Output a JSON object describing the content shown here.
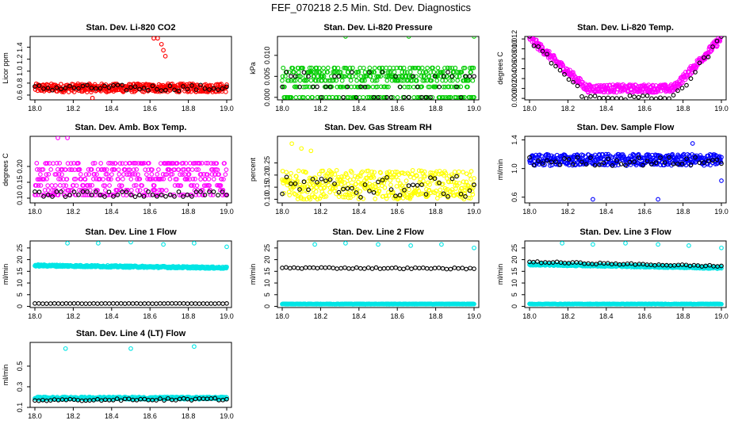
{
  "title": "FEF_070218  2.5 Min. Std. Dev. Diagnostics",
  "chart_data": [
    {
      "type": "scatter",
      "title": "Stan. Dev. Li-820 CO2",
      "ylabel": "Licor ppm",
      "xlim": [
        18.0,
        19.0
      ],
      "ylim": [
        0.52,
        1.58
      ],
      "xticks": [
        18.0,
        18.2,
        18.4,
        18.6,
        18.8,
        19.0
      ],
      "xtick_labels": [
        "18.0",
        "18.2",
        "18.4",
        "18.6",
        "18.8",
        "19.0"
      ],
      "yticks": [
        0.6,
        0.8,
        1.0,
        1.2,
        1.4
      ],
      "ytick_labels": [
        "0.6",
        "0.8",
        "1.0",
        "1.2",
        "1.4"
      ],
      "series": [
        {
          "name": "red",
          "color": "#ff0000",
          "n": 420,
          "mode": "band",
          "center": 0.72,
          "spread": 0.07,
          "extra": [
            [
              18.62,
              1.55
            ],
            [
              18.64,
              1.55
            ],
            [
              18.66,
              1.45
            ],
            [
              18.67,
              1.35
            ],
            [
              18.68,
              1.25
            ],
            [
              18.3,
              0.55
            ]
          ]
        },
        {
          "name": "black",
          "color": "#000000",
          "n": 45,
          "mode": "band",
          "center": 0.72,
          "spread": 0.05
        }
      ]
    },
    {
      "type": "scatter",
      "title": "Stan. Dev. Li-820 Pressure",
      "ylabel": "kPa",
      "xlim": [
        18.0,
        19.0
      ],
      "ylim": [
        -0.0006,
        0.0145
      ],
      "xticks": [
        18.0,
        18.2,
        18.4,
        18.6,
        18.8,
        19.0
      ],
      "xtick_labels": [
        "18.0",
        "18.2",
        "18.4",
        "18.6",
        "18.8",
        "19.0"
      ],
      "yticks": [
        0.0,
        0.005,
        0.01
      ],
      "ytick_labels": [
        "0.000",
        "0.005",
        "0.010"
      ],
      "series": [
        {
          "name": "green",
          "color": "#00cc00",
          "n": 420,
          "mode": "levels",
          "levels": [
            0,
            0.0025,
            0.004,
            0.005,
            0.006,
            0.007
          ],
          "extra": [
            [
              18.33,
              0.0145
            ],
            [
              18.66,
              0.0145
            ],
            [
              19.0,
              0.0145
            ]
          ]
        },
        {
          "name": "black",
          "color": "#000000",
          "n": 45,
          "mode": "levels",
          "levels": [
            0,
            0.0025,
            0.005,
            0.006
          ]
        }
      ]
    },
    {
      "type": "scatter",
      "title": "Stan. Dev. Li-820 Temp.",
      "ylabel": "degrees C",
      "xlim": [
        18.0,
        19.0
      ],
      "ylim": [
        -0.0003,
        0.0125
      ],
      "xticks": [
        18.0,
        18.2,
        18.4,
        18.6,
        18.8,
        19.0
      ],
      "xtick_labels": [
        "18.0",
        "18.2",
        "18.4",
        "18.6",
        "18.8",
        "19.0"
      ],
      "yticks": [
        0.0,
        0.002,
        0.004,
        0.006,
        0.008,
        0.01,
        0.012
      ],
      "ytick_labels": [
        "0.000",
        "0.002",
        "0.004",
        "0.006",
        "0.008",
        "0.010",
        "0.012"
      ],
      "series": [
        {
          "name": "magenta",
          "color": "#ff00ff",
          "n": 420,
          "mode": "vshape",
          "min": 0.002,
          "max": 0.0122,
          "spread": 0.0008
        },
        {
          "name": "black",
          "color": "#000000",
          "n": 45,
          "mode": "vshape",
          "min": 0.0,
          "max": 0.012,
          "spread": 0.0008
        }
      ]
    },
    {
      "type": "scatter",
      "title": "Stan. Dev. Amb. Box Temp.",
      "ylabel": "degrees C",
      "xlim": [
        18.0,
        19.0
      ],
      "ylim": [
        0.085,
        0.295
      ],
      "xticks": [
        18.0,
        18.2,
        18.4,
        18.6,
        18.8,
        19.0
      ],
      "xtick_labels": [
        "18.0",
        "18.2",
        "18.4",
        "18.6",
        "18.8",
        "19.0"
      ],
      "yticks": [
        0.1,
        0.15,
        0.2
      ],
      "ytick_labels": [
        "0.10",
        "0.15",
        "0.20"
      ],
      "series": [
        {
          "name": "magenta",
          "color": "#ff00ff",
          "n": 420,
          "mode": "levels",
          "levels": [
            0.11,
            0.125,
            0.14,
            0.16,
            0.175,
            0.19,
            0.21
          ],
          "extra": [
            [
              18.12,
              0.29
            ],
            [
              18.17,
              0.29
            ]
          ]
        },
        {
          "name": "black",
          "color": "#000000",
          "n": 45,
          "mode": "levels",
          "levels": [
            0.105,
            0.11,
            0.12
          ]
        }
      ]
    },
    {
      "type": "scatter",
      "title": "Stan. Dev. Gas Stream RH",
      "ylabel": "percent",
      "xlim": [
        18.0,
        19.0
      ],
      "ylim": [
        0.085,
        0.36
      ],
      "xticks": [
        18.0,
        18.2,
        18.4,
        18.6,
        18.8,
        19.0
      ],
      "xtick_labels": [
        "18.0",
        "18.2",
        "18.4",
        "18.6",
        "18.8",
        "19.0"
      ],
      "yticks": [
        0.1,
        0.15,
        0.2,
        0.25
      ],
      "ytick_labels": [
        "0.10",
        "0.15",
        "0.20",
        "0.25"
      ],
      "series": [
        {
          "name": "yellow",
          "color": "#ffff00",
          "n": 420,
          "mode": "band",
          "center": 0.16,
          "spread": 0.06,
          "extra": [
            [
              18.05,
              0.33
            ],
            [
              18.1,
              0.31
            ],
            [
              18.15,
              0.3
            ]
          ]
        },
        {
          "name": "black",
          "color": "#000000",
          "n": 45,
          "mode": "band",
          "center": 0.15,
          "spread": 0.045
        }
      ]
    },
    {
      "type": "scatter",
      "title": "Stan. Dev. Sample Flow",
      "ylabel": "ml/min",
      "xlim": [
        18.0,
        19.0
      ],
      "ylim": [
        0.52,
        1.45
      ],
      "xticks": [
        18.0,
        18.2,
        18.4,
        18.6,
        18.8,
        19.0
      ],
      "xtick_labels": [
        "18.0",
        "18.2",
        "18.4",
        "18.6",
        "18.8",
        "19.0"
      ],
      "yticks": [
        0.6,
        1.0,
        1.4
      ],
      "ytick_labels": [
        "0.6",
        "1.0",
        "1.4"
      ],
      "series": [
        {
          "name": "blue",
          "color": "#0000ff",
          "n": 420,
          "mode": "band",
          "center": 1.12,
          "spread": 0.08,
          "extra": [
            [
              18.33,
              0.57
            ],
            [
              18.67,
              0.57
            ],
            [
              19.0,
              0.83
            ],
            [
              18.85,
              1.35
            ]
          ]
        },
        {
          "name": "black",
          "color": "#000000",
          "n": 45,
          "mode": "band",
          "center": 1.1,
          "spread": 0.06
        }
      ]
    },
    {
      "type": "scatter",
      "title": "Stan. Dev. Line 1 Flow",
      "ylabel": "ml/min",
      "xlim": [
        18.0,
        19.0
      ],
      "ylim": [
        -0.5,
        28
      ],
      "xticks": [
        18.0,
        18.2,
        18.4,
        18.6,
        18.8,
        19.0
      ],
      "xtick_labels": [
        "18.0",
        "18.2",
        "18.4",
        "18.6",
        "18.8",
        "19.0"
      ],
      "yticks": [
        0,
        5,
        10,
        15,
        20,
        25
      ],
      "ytick_labels": [
        "0",
        "5",
        "10",
        "15",
        "20",
        "25"
      ],
      "series": [
        {
          "name": "cyan",
          "color": "#00e5e5",
          "n": 420,
          "mode": "line",
          "start": 17.5,
          "end": 16.5,
          "spread": 0.4,
          "extra": [
            [
              18.17,
              27
            ],
            [
              18.33,
              27
            ],
            [
              18.5,
              27.5
            ],
            [
              18.67,
              26.5
            ],
            [
              18.83,
              27
            ],
            [
              19.0,
              25.5
            ]
          ]
        },
        {
          "name": "black",
          "color": "#000000",
          "n": 50,
          "mode": "line",
          "start": 1.2,
          "end": 1.2,
          "spread": 0.05
        }
      ]
    },
    {
      "type": "scatter",
      "title": "Stan. Dev. Line 2 Flow",
      "ylabel": "ml/min",
      "xlim": [
        18.0,
        19.0
      ],
      "ylim": [
        -0.5,
        28
      ],
      "xticks": [
        18.0,
        18.2,
        18.4,
        18.6,
        18.8,
        19.0
      ],
      "xtick_labels": [
        "18.0",
        "18.2",
        "18.4",
        "18.6",
        "18.8",
        "19.0"
      ],
      "yticks": [
        0,
        5,
        10,
        15,
        20,
        25
      ],
      "ytick_labels": [
        "0",
        "5",
        "10",
        "15",
        "20",
        "25"
      ],
      "series": [
        {
          "name": "cyan",
          "color": "#00e5e5",
          "n": 420,
          "mode": "line",
          "start": 1.0,
          "end": 1.0,
          "spread": 0.1,
          "extra": [
            [
              18.17,
              26.5
            ],
            [
              18.33,
              27
            ],
            [
              18.5,
              26.5
            ],
            [
              18.67,
              26
            ],
            [
              18.83,
              26.5
            ],
            [
              19.0,
              25
            ]
          ]
        },
        {
          "name": "black",
          "color": "#000000",
          "n": 50,
          "mode": "line",
          "start": 16.5,
          "end": 16.2,
          "spread": 0.3
        }
      ]
    },
    {
      "type": "scatter",
      "title": "Stan. Dev. Line 3 Flow",
      "ylabel": "ml/min",
      "xlim": [
        18.0,
        19.0
      ],
      "ylim": [
        -0.5,
        28
      ],
      "xticks": [
        18.0,
        18.2,
        18.4,
        18.6,
        18.8,
        19.0
      ],
      "xtick_labels": [
        "18.0",
        "18.2",
        "18.4",
        "18.6",
        "18.8",
        "19.0"
      ],
      "yticks": [
        0,
        5,
        10,
        15,
        20,
        25
      ],
      "ytick_labels": [
        "0",
        "5",
        "10",
        "15",
        "20",
        "25"
      ],
      "series": [
        {
          "name": "cyan",
          "color": "#00e5e5",
          "n": 420,
          "mode": "line",
          "start": 18.0,
          "end": 16.5,
          "spread": 0.4,
          "extra": [
            [
              18.17,
              27
            ],
            [
              18.33,
              26.5
            ],
            [
              18.5,
              27
            ],
            [
              18.67,
              26.5
            ],
            [
              18.83,
              26
            ],
            [
              19.0,
              25
            ]
          ]
        },
        {
          "name": "cyan-low",
          "color": "#00e5e5",
          "n": 300,
          "mode": "line",
          "start": 1.0,
          "end": 1.0,
          "spread": 0.1
        },
        {
          "name": "black",
          "color": "#000000",
          "n": 50,
          "mode": "line",
          "start": 19.0,
          "end": 17.2,
          "spread": 0.3
        }
      ]
    },
    {
      "type": "scatter",
      "title": "Stan. Dev. Line 4 (LT) Flow",
      "ylabel": "ml/min",
      "xlim": [
        18.0,
        19.0
      ],
      "ylim": [
        0.1,
        0.73
      ],
      "xticks": [
        18.0,
        18.2,
        18.4,
        18.6,
        18.8,
        19.0
      ],
      "xtick_labels": [
        "18.0",
        "18.2",
        "18.4",
        "18.6",
        "18.8",
        "19.0"
      ],
      "yticks": [
        0.1,
        0.3,
        0.5
      ],
      "ytick_labels": [
        "0.1",
        "0.3",
        "0.5"
      ],
      "series": [
        {
          "name": "cyan",
          "color": "#00e5e5",
          "n": 420,
          "mode": "line",
          "start": 0.19,
          "end": 0.19,
          "spread": 0.012,
          "extra": [
            [
              18.16,
              0.67
            ],
            [
              18.5,
              0.67
            ],
            [
              18.83,
              0.69
            ]
          ]
        },
        {
          "name": "black",
          "color": "#000000",
          "n": 50,
          "mode": "line",
          "start": 0.17,
          "end": 0.18,
          "spread": 0.01
        }
      ]
    }
  ]
}
